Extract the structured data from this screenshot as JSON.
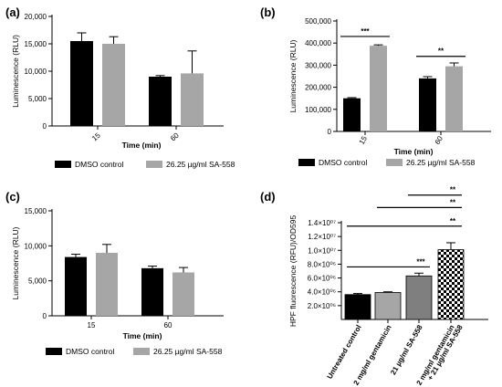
{
  "chart_data": [
    {
      "panel": "(a)",
      "type": "bar",
      "categories": [
        "15",
        "60"
      ],
      "series": [
        {
          "name": "DMSO control",
          "values": [
            15500,
            9000
          ],
          "errors": [
            1500,
            200
          ],
          "color": "#000000"
        },
        {
          "name": "26.25 µg/ml SA-558",
          "values": [
            15000,
            9600
          ],
          "errors": [
            1300,
            4100
          ],
          "color": "#a6a6a6"
        }
      ],
      "xlabel": "Time (min)",
      "ylabel": "Luminescence (RLU)",
      "ylim": [
        0,
        20000
      ],
      "yticks": [
        "0",
        "5,000",
        "10,000",
        "15,000",
        "20,000"
      ],
      "significance": [],
      "legend_position": "bottom"
    },
    {
      "panel": "(b)",
      "type": "bar",
      "categories": [
        "15",
        "60"
      ],
      "series": [
        {
          "name": "DMSO control",
          "values": [
            150000,
            240000
          ],
          "errors": [
            3000,
            8000
          ],
          "color": "#000000"
        },
        {
          "name": "26.25 µg/ml SA-558",
          "values": [
            388000,
            295000
          ],
          "errors": [
            4000,
            15000
          ],
          "color": "#a6a6a6"
        }
      ],
      "xlabel": "Time (min)",
      "ylabel": "Luminescence (RLU)",
      "ylim": [
        0,
        500000
      ],
      "yticks": [
        "0",
        "100,000",
        "200,000",
        "300,000",
        "400,000",
        "500,000"
      ],
      "significance": [
        {
          "label": "***",
          "category": "15",
          "y": 430000
        },
        {
          "label": "**",
          "category": "60",
          "y": 340000
        }
      ],
      "legend_position": "bottom"
    },
    {
      "panel": "(c)",
      "type": "bar",
      "categories": [
        "15",
        "60"
      ],
      "series": [
        {
          "name": "DMSO control",
          "values": [
            8400,
            6800
          ],
          "errors": [
            400,
            300
          ],
          "color": "#000000"
        },
        {
          "name": "26.25 µg/ml SA-558",
          "values": [
            9000,
            6200
          ],
          "errors": [
            1200,
            700
          ],
          "color": "#a6a6a6"
        }
      ],
      "xlabel": "Time (min)",
      "ylabel": "Luminescence (RLU)",
      "ylim": [
        0,
        15000
      ],
      "yticks": [
        "0",
        "5,000",
        "10,000",
        "15,000"
      ],
      "significance": [],
      "legend_position": "bottom"
    },
    {
      "panel": "(d)",
      "type": "bar",
      "categories": [
        "Untreated control",
        "2 mg/ml gentamicin",
        "21 µg/ml SA-558",
        "2 mg/ml gentamicin + 21 µg/ml SA-558"
      ],
      "values": [
        3600000.0,
        3900000.0,
        6300000.0,
        10100000.0
      ],
      "errors": [
        150000.0,
        100000.0,
        400000.0,
        1000000.0
      ],
      "fills": [
        "#000000",
        "#a6a6a6",
        "#7f7f7f",
        "checker"
      ],
      "xlabel": "",
      "ylabel": "HPF fluorescence (RFU)/OD595",
      "ylim": [
        0,
        14000000.0
      ],
      "yticks": [
        "2.0×10⁰⁶",
        "4.0×10⁰⁶",
        "6.0×10⁰⁶",
        "8.0×10⁰⁶",
        "1.0×10⁰⁷",
        "1.2×10⁰⁷",
        "1.4×10⁰⁷"
      ],
      "significance": [
        {
          "label": "***",
          "from": 0,
          "to": 2,
          "y": 7600000.0
        },
        {
          "label": "**",
          "from": 0,
          "to": 3,
          "y": 13500000.0
        },
        {
          "label": "**",
          "from": 1,
          "to": 3,
          "y": 16200000.0
        },
        {
          "label": "**",
          "from": 2,
          "to": 3,
          "y": 18000000.0
        }
      ]
    }
  ]
}
